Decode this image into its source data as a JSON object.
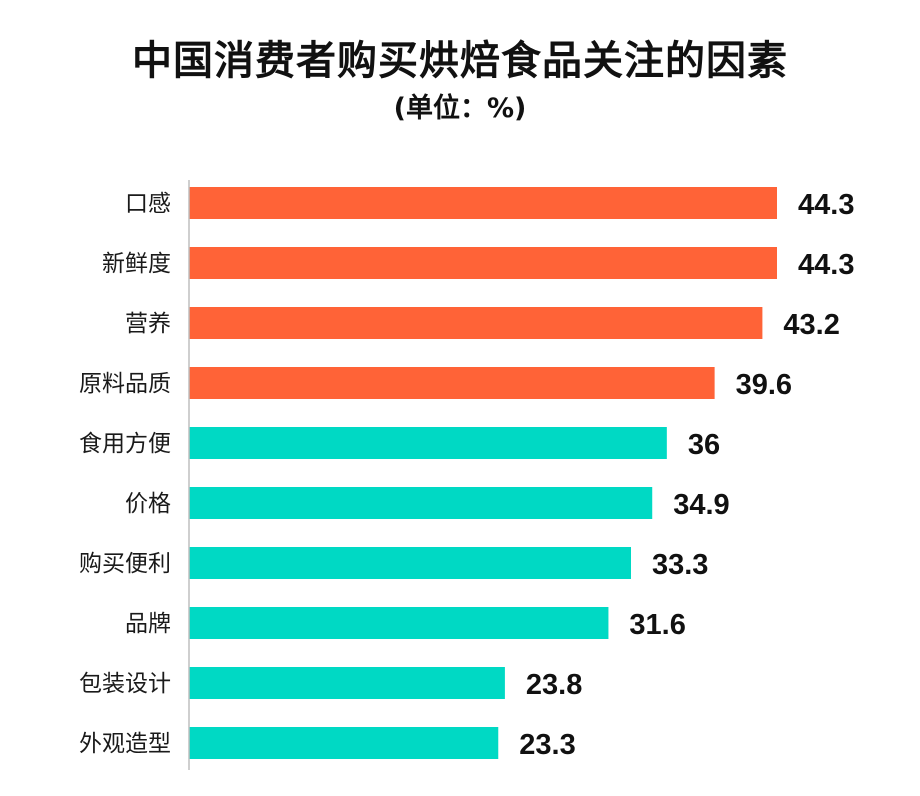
{
  "chart_data": {
    "type": "bar",
    "orientation": "horizontal",
    "title": "中国消费者购买烘焙食品关注的因素",
    "subtitle": "(单位：%)",
    "categories": [
      "口感",
      "新鲜度",
      "营养",
      "原料品质",
      "食用方便",
      "价格",
      "购买便利",
      "品牌",
      "包装设计",
      "外观造型"
    ],
    "values": [
      44.3,
      44.3,
      43.2,
      39.6,
      36,
      34.9,
      33.3,
      31.6,
      23.8,
      23.3
    ],
    "value_labels": [
      "44.3",
      "44.3",
      "43.2",
      "39.6",
      "36",
      "34.9",
      "33.3",
      "31.6",
      "23.8",
      "23.3"
    ],
    "highlight_count": 4,
    "colors": {
      "highlight": "#FF6337",
      "normal": "#00D9C4",
      "axis": "#bfbfbf"
    },
    "xlim": [
      0,
      44.3
    ],
    "grid": false,
    "legend": "none"
  }
}
